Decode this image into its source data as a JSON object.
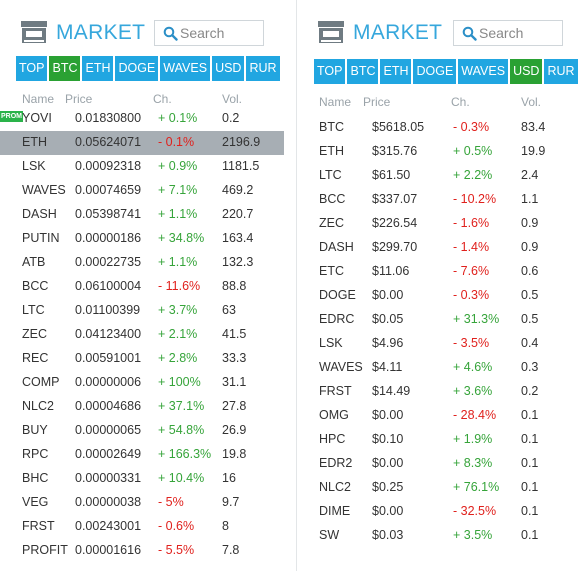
{
  "left": {
    "title": "MARKET",
    "search_placeholder": "Search",
    "tabs": [
      {
        "label": "TOP",
        "active": false
      },
      {
        "label": "BTC",
        "active": true
      },
      {
        "label": "ETH",
        "active": false
      },
      {
        "label": "DOGE",
        "active": false
      },
      {
        "label": "WAVES",
        "active": false
      },
      {
        "label": "USD",
        "active": false
      },
      {
        "label": "RUR",
        "active": false
      }
    ],
    "columns": {
      "name": "Name",
      "price": "Price",
      "change": "Ch.",
      "volume": "Vol."
    },
    "badge": "PROM",
    "rows": [
      {
        "name": "YOVI",
        "price": "0.01830800",
        "change": "+ 0.1%",
        "volume": "0.2",
        "dir": "pos"
      },
      {
        "name": "ETH",
        "price": "0.05624071",
        "change": "- 0.1%",
        "volume": "2196.9",
        "dir": "neg"
      },
      {
        "name": "LSK",
        "price": "0.00092318",
        "change": "+ 0.9%",
        "volume": "1181.5",
        "dir": "pos"
      },
      {
        "name": "WAVES",
        "price": "0.00074659",
        "change": "+ 7.1%",
        "volume": "469.2",
        "dir": "pos"
      },
      {
        "name": "DASH",
        "price": "0.05398741",
        "change": "+ 1.1%",
        "volume": "220.7",
        "dir": "pos"
      },
      {
        "name": "PUTIN",
        "price": "0.00000186",
        "change": "+ 34.8%",
        "volume": "163.4",
        "dir": "pos"
      },
      {
        "name": "ATB",
        "price": "0.00022735",
        "change": "+ 1.1%",
        "volume": "132.3",
        "dir": "pos"
      },
      {
        "name": "BCC",
        "price": "0.06100004",
        "change": "- 11.6%",
        "volume": "88.8",
        "dir": "neg"
      },
      {
        "name": "LTC",
        "price": "0.01100399",
        "change": "+ 3.7%",
        "volume": "63",
        "dir": "pos"
      },
      {
        "name": "ZEC",
        "price": "0.04123400",
        "change": "+ 2.1%",
        "volume": "41.5",
        "dir": "pos"
      },
      {
        "name": "REC",
        "price": "0.00591001",
        "change": "+ 2.8%",
        "volume": "33.3",
        "dir": "pos"
      },
      {
        "name": "COMP",
        "price": "0.00000006",
        "change": "+ 100%",
        "volume": "31.1",
        "dir": "pos"
      },
      {
        "name": "NLC2",
        "price": "0.00004686",
        "change": "+ 37.1%",
        "volume": "27.8",
        "dir": "pos"
      },
      {
        "name": "BUY",
        "price": "0.00000065",
        "change": "+ 54.8%",
        "volume": "26.9",
        "dir": "pos"
      },
      {
        "name": "RPC",
        "price": "0.00002649",
        "change": "+ 166.3%",
        "volume": "19.8",
        "dir": "pos"
      },
      {
        "name": "BHC",
        "price": "0.00000331",
        "change": "+ 10.4%",
        "volume": "16",
        "dir": "pos"
      },
      {
        "name": "VEG",
        "price": "0.00000038",
        "change": "- 5%",
        "volume": "9.7",
        "dir": "neg"
      },
      {
        "name": "FRST",
        "price": "0.00243001",
        "change": "- 0.6%",
        "volume": "8",
        "dir": "neg"
      },
      {
        "name": "PROFIT",
        "price": "0.00001616",
        "change": "- 5.5%",
        "volume": "7.8",
        "dir": "neg"
      }
    ]
  },
  "right": {
    "title": "MARKET",
    "search_placeholder": "Search",
    "tabs": [
      {
        "label": "TOP",
        "active": false
      },
      {
        "label": "BTC",
        "active": false
      },
      {
        "label": "ETH",
        "active": false
      },
      {
        "label": "DOGE",
        "active": false
      },
      {
        "label": "WAVES",
        "active": false
      },
      {
        "label": "USD",
        "active": true
      },
      {
        "label": "RUR",
        "active": false
      }
    ],
    "columns": {
      "name": "Name",
      "price": "Price",
      "change": "Ch.",
      "volume": "Vol."
    },
    "rows": [
      {
        "name": "BTC",
        "price": "$5618.05",
        "change": "- 0.3%",
        "volume": "83.4",
        "dir": "neg"
      },
      {
        "name": "ETH",
        "price": "$315.76",
        "change": "+ 0.5%",
        "volume": "19.9",
        "dir": "pos"
      },
      {
        "name": "LTC",
        "price": "$61.50",
        "change": "+ 2.2%",
        "volume": "2.4",
        "dir": "pos"
      },
      {
        "name": "BCC",
        "price": "$337.07",
        "change": "- 10.2%",
        "volume": "1.1",
        "dir": "neg"
      },
      {
        "name": "ZEC",
        "price": "$226.54",
        "change": "- 1.6%",
        "volume": "0.9",
        "dir": "neg"
      },
      {
        "name": "DASH",
        "price": "$299.70",
        "change": "- 1.4%",
        "volume": "0.9",
        "dir": "neg"
      },
      {
        "name": "ETC",
        "price": "$11.06",
        "change": "- 7.6%",
        "volume": "0.6",
        "dir": "neg"
      },
      {
        "name": "DOGE",
        "price": "$0.00",
        "change": "- 0.3%",
        "volume": "0.5",
        "dir": "neg"
      },
      {
        "name": "EDRC",
        "price": "$0.05",
        "change": "+ 31.3%",
        "volume": "0.5",
        "dir": "pos"
      },
      {
        "name": "LSK",
        "price": "$4.96",
        "change": "- 3.5%",
        "volume": "0.4",
        "dir": "neg"
      },
      {
        "name": "WAVES",
        "price": "$4.11",
        "change": "+ 4.6%",
        "volume": "0.3",
        "dir": "pos"
      },
      {
        "name": "FRST",
        "price": "$14.49",
        "change": "+ 3.6%",
        "volume": "0.2",
        "dir": "pos"
      },
      {
        "name": "OMG",
        "price": "$0.00",
        "change": "- 28.4%",
        "volume": "0.1",
        "dir": "neg"
      },
      {
        "name": "HPC",
        "price": "$0.10",
        "change": "+ 1.9%",
        "volume": "0.1",
        "dir": "pos"
      },
      {
        "name": "EDR2",
        "price": "$0.00",
        "change": "+ 8.3%",
        "volume": "0.1",
        "dir": "pos"
      },
      {
        "name": "NLC2",
        "price": "$0.25",
        "change": "+ 76.1%",
        "volume": "0.1",
        "dir": "pos"
      },
      {
        "name": "DIME",
        "price": "$0.00",
        "change": "- 32.5%",
        "volume": "0.1",
        "dir": "neg"
      },
      {
        "name": "SW",
        "price": "$0.03",
        "change": "+ 3.5%",
        "volume": "0.1",
        "dir": "pos"
      }
    ]
  },
  "colors": {
    "accent": "#21a6e1",
    "tab_active": "#2aa133",
    "positive": "#36a43a",
    "negative": "#e0211d",
    "selected_row": "#a7aeb4",
    "title": "#36a7dc",
    "column_header": "#9aa3a9"
  },
  "icons": {
    "logo": "market-store-icon",
    "search": "search-icon"
  }
}
